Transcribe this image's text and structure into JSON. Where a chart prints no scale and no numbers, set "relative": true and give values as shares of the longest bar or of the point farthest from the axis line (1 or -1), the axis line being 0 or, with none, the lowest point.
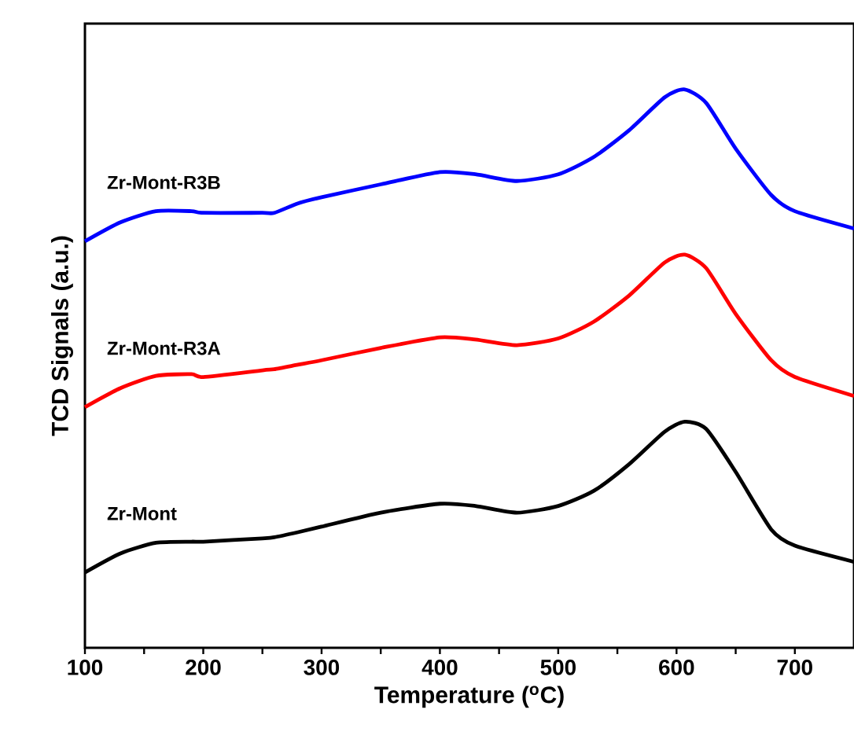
{
  "chart_data": {
    "type": "line",
    "relative": true,
    "xlabel": "Temperature ($^{o}$C)",
    "ylabel": "TCD Signals (a.u.)",
    "x": [
      100,
      130,
      160,
      190,
      200,
      250,
      260,
      280,
      300,
      350,
      400,
      430,
      465,
      500,
      530,
      560,
      590,
      607,
      625,
      650,
      680,
      700,
      750
    ],
    "xlim": [
      100,
      750
    ],
    "xticks": [
      100,
      {
        "value": 150,
        "label": null
      },
      200,
      {
        "value": 250,
        "label": null
      },
      300,
      {
        "value": 350,
        "label": null
      },
      400,
      {
        "value": 450,
        "label": null
      },
      500,
      {
        "value": 550,
        "label": null
      },
      600,
      {
        "value": 650,
        "label": null
      },
      700
    ],
    "marker": "none",
    "line_style": "solid",
    "grid": false,
    "legend": false,
    "series": [
      {
        "name": "Zr-Mont-R3B",
        "color": "#0000ff",
        "values": [
          0.728,
          0.762,
          0.782,
          0.782,
          0.779,
          0.779,
          0.779,
          0.796,
          0.807,
          0.83,
          0.852,
          0.848,
          0.836,
          0.848,
          0.879,
          0.927,
          0.986,
          1.0,
          0.976,
          0.894,
          0.811,
          0.782,
          0.751
        ]
      },
      {
        "name": "Zr-Mont-R3A",
        "color": "#ff0000",
        "values": [
          0.431,
          0.465,
          0.487,
          0.49,
          0.485,
          0.497,
          0.499,
          0.507,
          0.515,
          0.537,
          0.556,
          0.552,
          0.542,
          0.554,
          0.584,
          0.631,
          0.69,
          0.704,
          0.68,
          0.598,
          0.515,
          0.485,
          0.451
        ]
      },
      {
        "name": "Zr-Mont",
        "color": "#000000",
        "values": [
          0.135,
          0.169,
          0.188,
          0.19,
          0.19,
          0.196,
          0.198,
          0.207,
          0.217,
          0.242,
          0.258,
          0.254,
          0.242,
          0.254,
          0.281,
          0.329,
          0.387,
          0.405,
          0.392,
          0.315,
          0.212,
          0.183,
          0.154
        ]
      }
    ]
  }
}
